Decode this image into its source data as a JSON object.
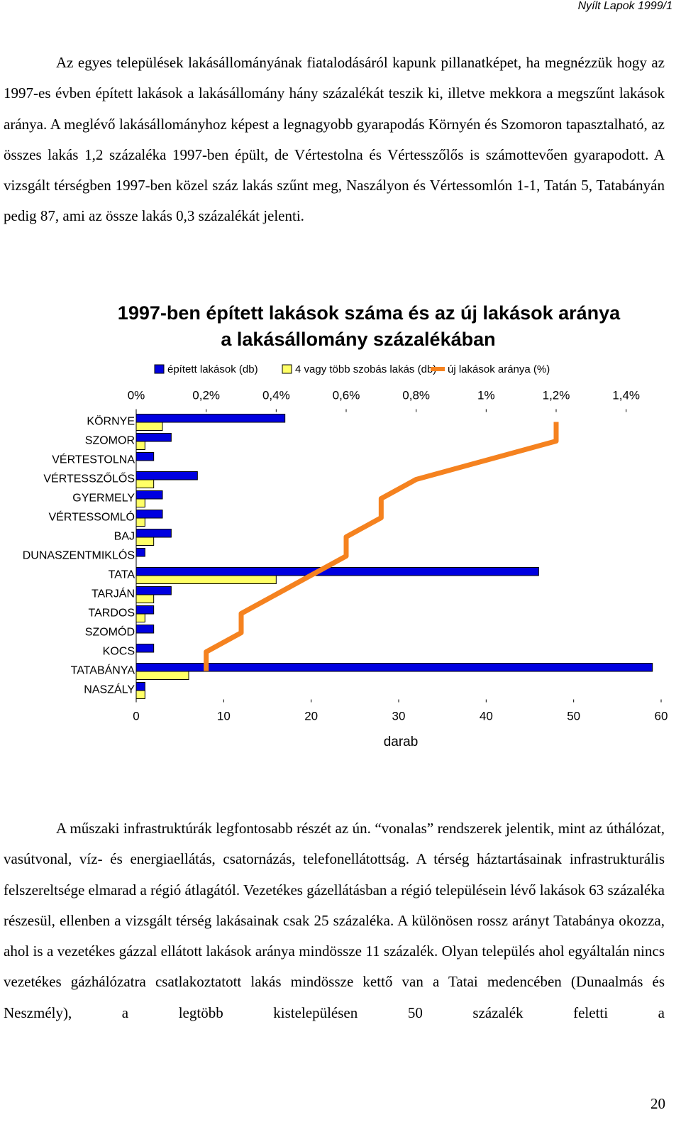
{
  "header": "Nyílt Lapok 1999/1",
  "paragraphs": [
    "Az egyes települések lakásállományának fiatalodásáról kapunk pillanatképet, ha megnézzük hogy az 1997-es évben épített lakások a lakásállomány hány százalékát teszik ki, illetve mekkora a megszűnt lakások aránya. A meglévő lakásállományhoz képest a legnagyobb gyarapodás Környén és Szomoron tapasztalható, az összes lakás 1,2 százaléka 1997-ben épült, de Vértestolna és Vértesszőlős is számottevően gyarapodott. A vizsgált térségben 1997-ben közel száz lakás szűnt meg, Naszályon és Vértessomlón 1-1, Tatán 5, Tatabányán pedig 87, ami az össze lakás 0,3 százalékát jelenti.",
    "A műszaki infrastruktúrák legfontosabb részét az ún. “vonalas” rendszerek jelentik, mint az úthálózat, vasútvonal, víz- és energiaellátás, csatornázás, telefonellátottság. A térség háztartásainak infrastrukturális felszereltsége elmarad a régió átlagától. Vezetékes gázellátásban a régió településein lévő lakások 63 százaléka részesül, ellenben a vizsgált térség lakásainak csak 25 százaléka. A különösen rossz arányt Tatabánya okozza, ahol is a vezetékes gázzal ellátott lakások aránya mindössze 11 százalék. Olyan település ahol egyáltalán nincs vezetékes gázhálózatra csatlakoztatott lakás mindössze kettő van a Tatai medencében (Dunaalmás és Neszmély), a legtöbb kistelepülésen 50 százalék feletti a"
  ],
  "page_number": "20",
  "chart_data": {
    "type": "bar",
    "orientation": "horizontal",
    "title": [
      "1997-ben épített lakások száma és az új lakások aránya",
      "a lakásállomány százalékában"
    ],
    "categories": [
      "KÖRNYE",
      "SZOMOR",
      "VÉRTESTOLNA",
      "VÉRTESSZŐLŐS",
      "GYERMELY",
      "VÉRTESSOMLÓ",
      "BAJ",
      "DUNASZENTMIKLÓS",
      "TATA",
      "TARJÁN",
      "TARDOS",
      "SZOMÓD",
      "KOCS",
      "TATABÁNYA",
      "NASZÁLY"
    ],
    "series": [
      {
        "name": "épített lakások (db)",
        "color": "#0000e0",
        "values": [
          17,
          4,
          2,
          7,
          3,
          3,
          4,
          1,
          46,
          4,
          2,
          2,
          2,
          59,
          1
        ]
      },
      {
        "name": "4 vagy több szobás lakás (db)",
        "color": "#ffff66",
        "values": [
          3,
          1,
          0,
          2,
          1,
          1,
          2,
          0,
          16,
          2,
          1,
          0,
          0,
          6,
          1
        ]
      },
      {
        "name": "új lakások aránya (%)",
        "color": "#f5821f",
        "type": "line",
        "axis": "x2",
        "values": [
          1.2,
          1.2,
          1.0,
          0.8,
          0.7,
          0.7,
          0.6,
          0.6,
          0.5,
          0.4,
          0.3,
          0.3,
          0.2,
          0.2,
          null
        ]
      }
    ],
    "xlabel": "darab",
    "xlim": [
      0,
      60
    ],
    "xticks": [
      0,
      10,
      20,
      30,
      40,
      50,
      60
    ],
    "x2lim": [
      0,
      1.5
    ],
    "x2ticks": [
      {
        "value": 0,
        "label": "0%"
      },
      {
        "value": 0.2,
        "label": "0,2%"
      },
      {
        "value": 0.4,
        "label": "0,4%"
      },
      {
        "value": 0.6,
        "label": "0,6%"
      },
      {
        "value": 0.8,
        "label": "0,8%"
      },
      {
        "value": 1,
        "label": "1%"
      },
      {
        "value": 1.2,
        "label": "1,2%"
      },
      {
        "value": 1.4,
        "label": "1,4%"
      }
    ],
    "legend": "top",
    "grid": false
  }
}
